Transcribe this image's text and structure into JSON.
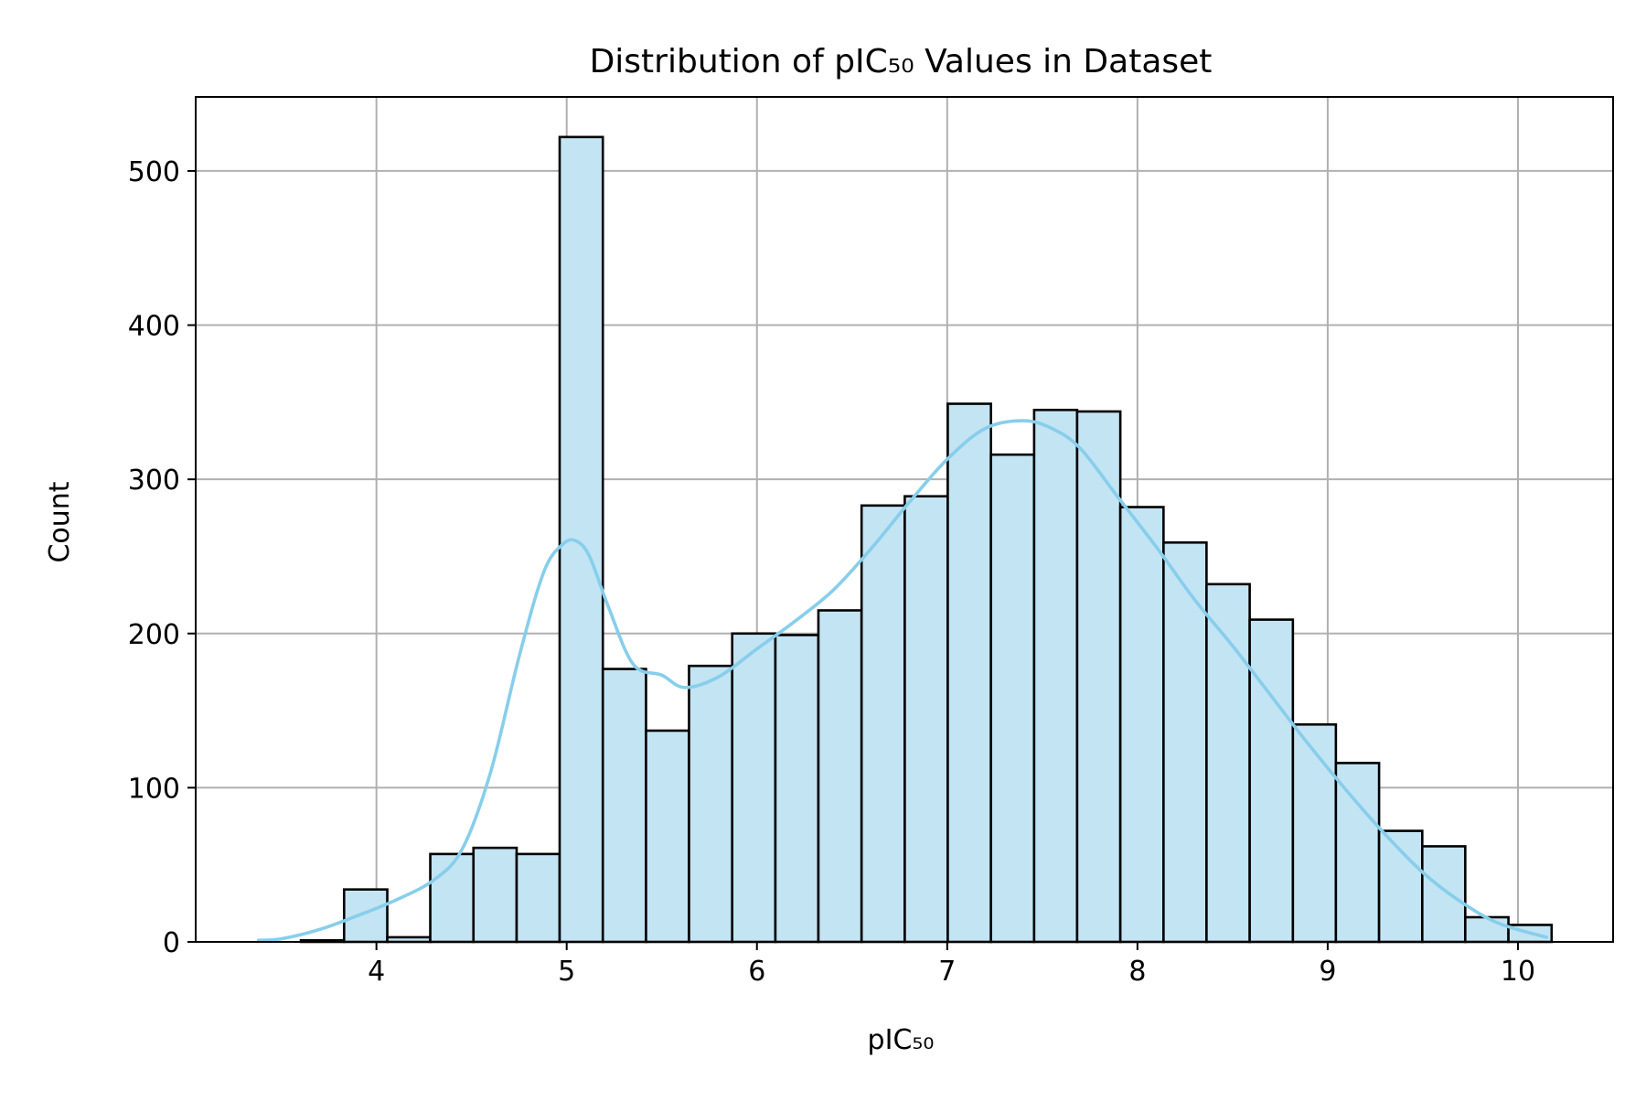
{
  "chart_data": {
    "type": "histogram",
    "title": "Distribution of pIC₅₀ Values in Dataset",
    "xlabel": "pIC₅₀",
    "ylabel": "Count",
    "xlim": [
      3.05,
      10.5
    ],
    "ylim": [
      0,
      548
    ],
    "x_ticks": [
      4,
      5,
      6,
      7,
      8,
      9,
      10
    ],
    "y_ticks": [
      0,
      100,
      200,
      300,
      400,
      500
    ],
    "grid": true,
    "legend": "none",
    "bar_color": "#c3e4f3",
    "edge_color": "#000000",
    "kde_color": "#87ceeb",
    "bins": [
      {
        "x0": 3.603,
        "x1": 3.83,
        "count": 1
      },
      {
        "x0": 3.83,
        "x1": 4.057,
        "count": 34
      },
      {
        "x0": 4.057,
        "x1": 4.283,
        "count": 3
      },
      {
        "x0": 4.283,
        "x1": 4.51,
        "count": 57
      },
      {
        "x0": 4.51,
        "x1": 4.737,
        "count": 61
      },
      {
        "x0": 4.737,
        "x1": 4.963,
        "count": 57
      },
      {
        "x0": 4.963,
        "x1": 5.19,
        "count": 522
      },
      {
        "x0": 5.19,
        "x1": 5.417,
        "count": 177
      },
      {
        "x0": 5.417,
        "x1": 5.643,
        "count": 137
      },
      {
        "x0": 5.643,
        "x1": 5.87,
        "count": 179
      },
      {
        "x0": 5.87,
        "x1": 6.097,
        "count": 200
      },
      {
        "x0": 6.097,
        "x1": 6.323,
        "count": 199
      },
      {
        "x0": 6.323,
        "x1": 6.55,
        "count": 215
      },
      {
        "x0": 6.55,
        "x1": 6.777,
        "count": 283
      },
      {
        "x0": 6.777,
        "x1": 7.003,
        "count": 289
      },
      {
        "x0": 7.003,
        "x1": 7.23,
        "count": 349
      },
      {
        "x0": 7.23,
        "x1": 7.457,
        "count": 316
      },
      {
        "x0": 7.457,
        "x1": 7.683,
        "count": 345
      },
      {
        "x0": 7.683,
        "x1": 7.91,
        "count": 344
      },
      {
        "x0": 7.91,
        "x1": 8.137,
        "count": 282
      },
      {
        "x0": 8.137,
        "x1": 8.363,
        "count": 259
      },
      {
        "x0": 8.363,
        "x1": 8.59,
        "count": 232
      },
      {
        "x0": 8.59,
        "x1": 8.817,
        "count": 209
      },
      {
        "x0": 8.817,
        "x1": 9.043,
        "count": 141
      },
      {
        "x0": 9.043,
        "x1": 9.27,
        "count": 116
      },
      {
        "x0": 9.27,
        "x1": 9.497,
        "count": 72
      },
      {
        "x0": 9.497,
        "x1": 9.723,
        "count": 62
      },
      {
        "x0": 9.723,
        "x1": 9.95,
        "count": 16
      },
      {
        "x0": 9.95,
        "x1": 10.177,
        "count": 11
      }
    ],
    "kde": {
      "x": [
        3.38,
        3.5,
        3.7,
        3.9,
        4.1,
        4.3,
        4.45,
        4.6,
        4.75,
        4.88,
        4.98,
        5.05,
        5.12,
        5.22,
        5.35,
        5.5,
        5.62,
        5.8,
        6.0,
        6.2,
        6.4,
        6.6,
        6.8,
        7.0,
        7.2,
        7.4,
        7.55,
        7.7,
        7.9,
        8.1,
        8.3,
        8.5,
        8.7,
        8.9,
        9.1,
        9.3,
        9.5,
        9.7,
        9.9,
        10.15
      ],
      "y": [
        1,
        2,
        8,
        17,
        27,
        40,
        60,
        110,
        185,
        240,
        258,
        260,
        250,
        217,
        180,
        173,
        165,
        172,
        190,
        208,
        228,
        255,
        285,
        313,
        333,
        338,
        333,
        320,
        288,
        256,
        222,
        192,
        160,
        128,
        98,
        70,
        45,
        26,
        12,
        3
      ]
    }
  }
}
